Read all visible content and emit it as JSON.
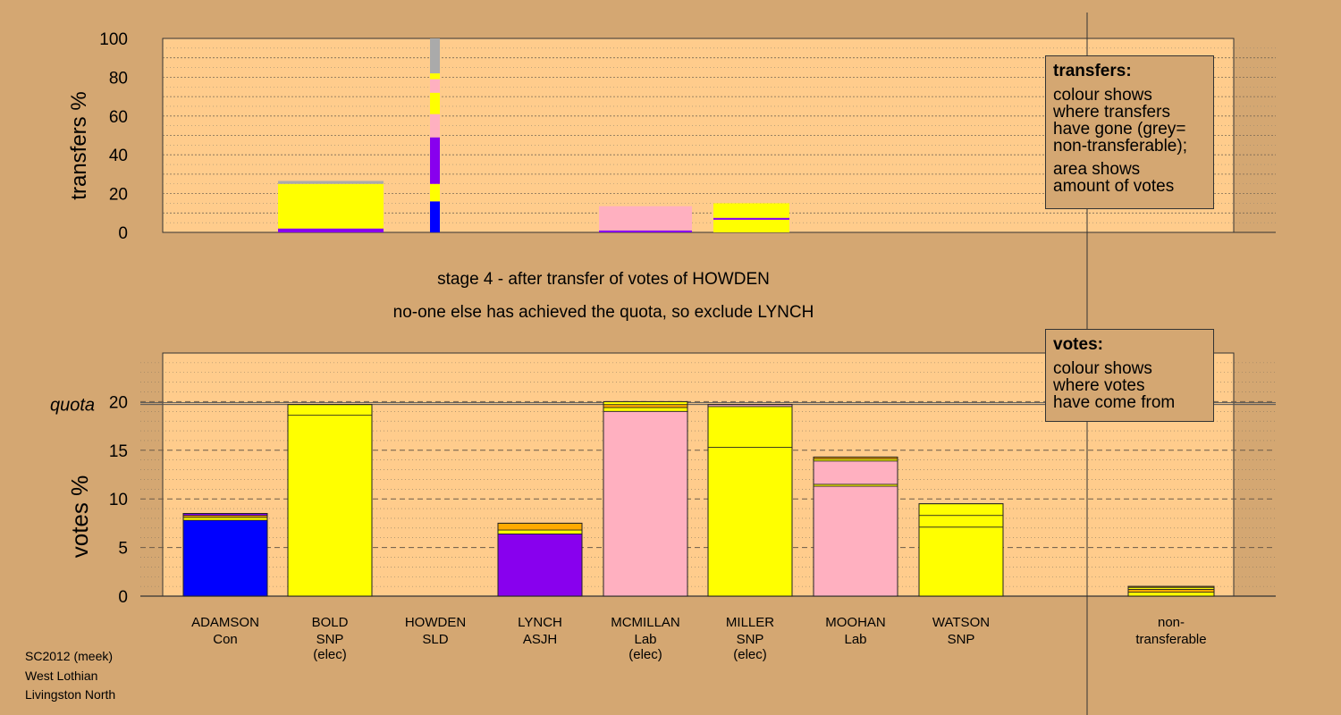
{
  "colors": {
    "Con": "#0000ff",
    "SNP": "#ffff00",
    "SLD": "#ffaa00",
    "ASJH": "#8800ee",
    "Lab": "#ffb0c0",
    "nontransferable": "#aaaaaa",
    "plot_bg": "#ffcc8c",
    "page_bg": "#d4a772"
  },
  "stage_text": {
    "line1": "stage 4 - after transfer of votes of HOWDEN",
    "line2": "no-one else has achieved the quota, so exclude LYNCH"
  },
  "transfers_legend": {
    "title": "transfers:",
    "lines1": [
      "colour shows",
      "where transfers",
      "have gone (grey=",
      "non-transferable);"
    ],
    "lines2": [
      "area shows",
      "amount of votes"
    ]
  },
  "votes_legend": {
    "title": "votes:",
    "lines": [
      "colour shows",
      "where votes",
      "have come from"
    ]
  },
  "footer": {
    "lines": [
      "SC2012 (meek)",
      "West Lothian",
      "Livingston North"
    ]
  },
  "chart_data": [
    {
      "type": "bar",
      "name": "transfers",
      "ylabel": "transfers %",
      "ylim": [
        0,
        100
      ],
      "yticks": [
        0,
        20,
        40,
        60,
        80,
        100
      ],
      "bars": [
        {
          "x": "BOLD",
          "segments": [
            {
              "party": "ASJH",
              "value": 2
            },
            {
              "party": "SNP",
              "value": 23
            },
            {
              "party": "nontransferable",
              "value": 1.5
            }
          ]
        },
        {
          "x": "HOWDEN",
          "segments": [
            {
              "party": "Con",
              "value": 16
            },
            {
              "party": "SNP",
              "value": 9
            },
            {
              "party": "ASJH",
              "value": 24
            },
            {
              "party": "Lab",
              "value": 12
            },
            {
              "party": "SNP",
              "value": 11
            },
            {
              "party": "Lab",
              "value": 7
            },
            {
              "party": "SNP",
              "value": 3
            },
            {
              "party": "nontransferable",
              "value": 18
            }
          ]
        },
        {
          "x": "MCMILLAN",
          "segments": [
            {
              "party": "ASJH",
              "value": 1
            },
            {
              "party": "Lab",
              "value": 12.5
            }
          ]
        },
        {
          "x": "MILLER",
          "segments": [
            {
              "party": "SNP",
              "value": 6.5
            },
            {
              "party": "ASJH",
              "value": 1
            },
            {
              "party": "SNP",
              "value": 7.5
            }
          ]
        }
      ]
    },
    {
      "type": "bar",
      "name": "votes",
      "ylabel": "votes %",
      "ylim": [
        0,
        25
      ],
      "yticks": [
        0,
        5,
        10,
        15,
        20
      ],
      "quota": 19.8,
      "quota_label": "quota",
      "candidates": [
        {
          "name": "ADAMSON",
          "party": "Con",
          "note": "",
          "segments": [
            {
              "party": "Con",
              "value": 7.8
            },
            {
              "party": "SNP",
              "value": 0.3
            },
            {
              "party": "SLD",
              "value": 0.2
            },
            {
              "party": "ASJH",
              "value": 0.2
            }
          ]
        },
        {
          "name": "BOLD",
          "party": "SNP",
          "note": "(elec)",
          "segments": [
            {
              "party": "SNP",
              "value": 18.6
            },
            {
              "party": "SNP",
              "value": 1.1
            }
          ]
        },
        {
          "name": "HOWDEN",
          "party": "SLD",
          "note": "",
          "segments": []
        },
        {
          "name": "LYNCH",
          "party": "ASJH",
          "note": "",
          "segments": [
            {
              "party": "ASJH",
              "value": 6.4
            },
            {
              "party": "SNP",
              "value": 0.4
            },
            {
              "party": "SLD",
              "value": 0.7
            }
          ]
        },
        {
          "name": "MCMILLAN",
          "party": "Lab",
          "note": "(elec)",
          "segments": [
            {
              "party": "Lab",
              "value": 19.0
            },
            {
              "party": "SNP",
              "value": 0.4
            },
            {
              "party": "SLD",
              "value": 0.3
            },
            {
              "party": "SNP",
              "value": 0.3
            }
          ]
        },
        {
          "name": "MILLER",
          "party": "SNP",
          "note": "(elec)",
          "segments": [
            {
              "party": "SNP",
              "value": 15.3
            },
            {
              "party": "SNP",
              "value": 4.2
            },
            {
              "party": "Lab",
              "value": 0.2
            }
          ]
        },
        {
          "name": "MOOHAN",
          "party": "Lab",
          "note": "",
          "segments": [
            {
              "party": "Lab",
              "value": 11.3
            },
            {
              "party": "SNP",
              "value": 0.2
            },
            {
              "party": "Lab",
              "value": 2.4
            },
            {
              "party": "SNP",
              "value": 0.2
            },
            {
              "party": "SLD",
              "value": 0.2
            }
          ]
        },
        {
          "name": "WATSON",
          "party": "SNP",
          "note": "",
          "segments": [
            {
              "party": "SNP",
              "value": 7.1
            },
            {
              "party": "SNP",
              "value": 1.2
            },
            {
              "party": "SNP",
              "value": 1.2
            }
          ]
        },
        {
          "name": "non-",
          "party": "transferable",
          "note": "",
          "nontransferable": true,
          "segments": [
            {
              "party": "SNP",
              "value": 0.4
            },
            {
              "party": "SLD",
              "value": 0.3
            },
            {
              "party": "SNP",
              "value": 0.2
            },
            {
              "party": "SLD",
              "value": 0.1
            }
          ]
        }
      ]
    }
  ]
}
